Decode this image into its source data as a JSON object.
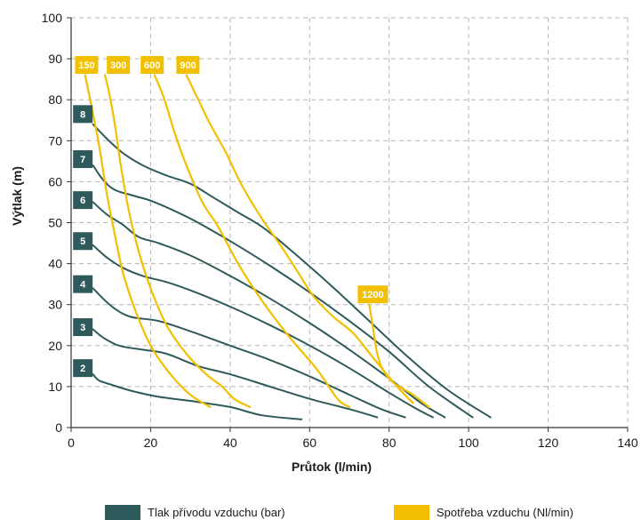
{
  "colors": {
    "pressure": "#2f5a5b",
    "consumption": "#f2c000",
    "grid": "#b5b5b5",
    "axis": "#333333"
  },
  "chart_data": {
    "type": "line",
    "xlabel": "Průtok (l/min)",
    "ylabel": "Výtlak (m)",
    "xlim": [
      0,
      140
    ],
    "ylim": [
      0,
      100
    ],
    "xticks": [
      0,
      20,
      40,
      60,
      80,
      100,
      120,
      140
    ],
    "yticks": [
      0,
      10,
      20,
      30,
      40,
      50,
      60,
      70,
      80,
      90,
      100
    ],
    "grid": "dashed",
    "legend": {
      "placement": "bottom",
      "items": [
        {
          "label": "Tlak přívodu vzduchu (bar)",
          "color": "#2f5a5b"
        },
        {
          "label": "Spotřeba vzduchu (Nl/min)",
          "color": "#f2c000"
        }
      ]
    },
    "pressure_series": [
      {
        "label": "2",
        "label_at": [
          2.5,
          14.5
        ],
        "points": [
          [
            5.5,
            13
          ],
          [
            7,
            11.5
          ],
          [
            10,
            10.5
          ],
          [
            15,
            9
          ],
          [
            22,
            7.5
          ],
          [
            30,
            6.5
          ],
          [
            40,
            5
          ],
          [
            48,
            3
          ],
          [
            58,
            2
          ]
        ]
      },
      {
        "label": "3",
        "label_at": [
          2.5,
          24.5
        ],
        "points": [
          [
            5.5,
            24
          ],
          [
            8,
            22
          ],
          [
            12,
            20
          ],
          [
            18,
            19
          ],
          [
            24,
            18
          ],
          [
            32,
            15
          ],
          [
            40,
            13
          ],
          [
            50,
            10
          ],
          [
            60,
            7
          ],
          [
            70,
            4.5
          ],
          [
            77,
            2.5
          ]
        ]
      },
      {
        "label": "4",
        "label_at": [
          2.5,
          35
        ],
        "points": [
          [
            5.5,
            34
          ],
          [
            8,
            31.5
          ],
          [
            11,
            29
          ],
          [
            15,
            27
          ],
          [
            22,
            26
          ],
          [
            30,
            23.5
          ],
          [
            40,
            20
          ],
          [
            50,
            16.5
          ],
          [
            60,
            12.5
          ],
          [
            70,
            8
          ],
          [
            78,
            4.5
          ],
          [
            84,
            2.5
          ]
        ]
      },
      {
        "label": "5",
        "label_at": [
          2.5,
          45.5
        ],
        "points": [
          [
            5.5,
            44.5
          ],
          [
            9,
            41.5
          ],
          [
            13,
            39
          ],
          [
            18,
            37
          ],
          [
            24,
            35.5
          ],
          [
            30,
            33.5
          ],
          [
            40,
            29.5
          ],
          [
            50,
            25
          ],
          [
            60,
            20
          ],
          [
            70,
            14.5
          ],
          [
            80,
            8.5
          ],
          [
            87,
            4.5
          ],
          [
            91,
            2.5
          ]
        ]
      },
      {
        "label": "6",
        "label_at": [
          2.5,
          55.5
        ],
        "points": [
          [
            5.5,
            55
          ],
          [
            9,
            52
          ],
          [
            13,
            49.5
          ],
          [
            17,
            46.5
          ],
          [
            22,
            45
          ],
          [
            30,
            42
          ],
          [
            40,
            37
          ],
          [
            50,
            31.5
          ],
          [
            60,
            25.5
          ],
          [
            70,
            19
          ],
          [
            80,
            12
          ],
          [
            88,
            6
          ],
          [
            94,
            2.5
          ]
        ]
      },
      {
        "label": "7",
        "label_at": [
          2.5,
          65.5
        ],
        "points": [
          [
            5.5,
            64
          ],
          [
            8,
            60.5
          ],
          [
            11,
            58
          ],
          [
            16,
            56.5
          ],
          [
            21,
            55
          ],
          [
            30,
            51
          ],
          [
            40,
            45.5
          ],
          [
            50,
            39.5
          ],
          [
            60,
            33
          ],
          [
            70,
            26
          ],
          [
            80,
            18.5
          ],
          [
            90,
            10
          ],
          [
            101,
            2.5
          ]
        ]
      },
      {
        "label": "8",
        "label_at": [
          2.5,
          76.5
        ],
        "points": [
          [
            5.5,
            74
          ],
          [
            9,
            70.5
          ],
          [
            13,
            67
          ],
          [
            18,
            64
          ],
          [
            24,
            61.5
          ],
          [
            30,
            59.5
          ],
          [
            36,
            56
          ],
          [
            42,
            52.5
          ],
          [
            48,
            49
          ],
          [
            55,
            43.5
          ],
          [
            65,
            35
          ],
          [
            75,
            26
          ],
          [
            85,
            17
          ],
          [
            95,
            9
          ],
          [
            105.5,
            2.5
          ]
        ]
      }
    ],
    "consumption_series": [
      {
        "label": "150",
        "label_at": [
          3,
          88.5
        ],
        "points": [
          [
            3.5,
            86
          ],
          [
            5,
            79
          ],
          [
            7,
            69
          ],
          [
            9,
            57
          ],
          [
            11,
            47
          ],
          [
            13,
            38
          ],
          [
            16,
            29
          ],
          [
            20,
            20
          ],
          [
            25,
            13
          ],
          [
            30,
            8
          ],
          [
            35,
            5
          ]
        ]
      },
      {
        "label": "300",
        "label_at": [
          11,
          88.5
        ],
        "points": [
          [
            8.5,
            86
          ],
          [
            9.5,
            82
          ],
          [
            11,
            74
          ],
          [
            12.5,
            64
          ],
          [
            14.5,
            53
          ],
          [
            17,
            43
          ],
          [
            20,
            34
          ],
          [
            24,
            25
          ],
          [
            29,
            18
          ],
          [
            34,
            13
          ],
          [
            38,
            10
          ],
          [
            41,
            7
          ],
          [
            45,
            5
          ]
        ]
      },
      {
        "label": "600",
        "label_at": [
          19.5,
          88.5
        ],
        "points": [
          [
            21,
            86
          ],
          [
            23.5,
            80
          ],
          [
            26,
            72
          ],
          [
            29,
            64
          ],
          [
            33,
            55
          ],
          [
            37,
            49
          ],
          [
            42,
            40
          ],
          [
            48,
            31
          ],
          [
            55,
            22
          ],
          [
            62,
            14
          ],
          [
            67,
            7
          ],
          [
            70,
            5
          ]
        ]
      },
      {
        "label": "900",
        "label_at": [
          28.5,
          88.5
        ],
        "points": [
          [
            29,
            86
          ],
          [
            32,
            80
          ],
          [
            35,
            74
          ],
          [
            39,
            67
          ],
          [
            43,
            59
          ],
          [
            48,
            51
          ],
          [
            53,
            44
          ],
          [
            57,
            38
          ],
          [
            61,
            32
          ],
          [
            66,
            27
          ],
          [
            71,
            23
          ],
          [
            76,
            17
          ],
          [
            82,
            10
          ],
          [
            86,
            6
          ]
        ]
      },
      {
        "label": "1200",
        "label_at": [
          75,
          32.5
        ],
        "points": [
          [
            75,
            30
          ],
          [
            76,
            24
          ],
          [
            77,
            18
          ],
          [
            78.5,
            14
          ],
          [
            81,
            11
          ],
          [
            86,
            8
          ],
          [
            90,
            5
          ]
        ]
      }
    ]
  }
}
